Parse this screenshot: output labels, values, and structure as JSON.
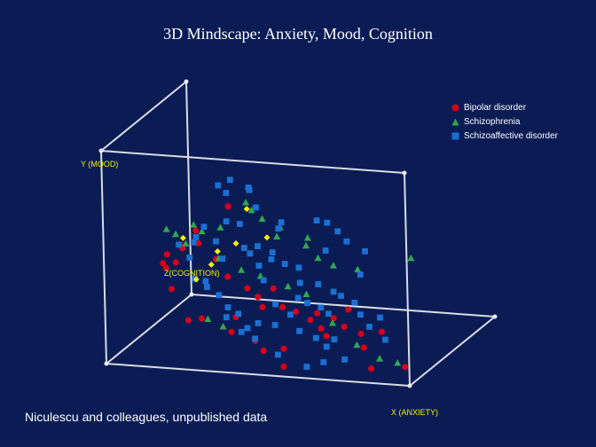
{
  "slide": {
    "title": "3D Mindscape: Anxiety, Mood, Cognition",
    "footnote": "Niculescu and colleagues, unpublished data"
  },
  "colors": {
    "background": "#0b1c55",
    "frame": "#d9dce4",
    "bipolar": "#d4001a",
    "schizophrenia": "#2fa84f",
    "schizoaffective": "#1a70d2",
    "highlight": "#f6f000"
  },
  "chart_data": {
    "type": "scatter",
    "projection": "3d",
    "title": "3D Mindscape: Anxiety, Mood, Cognition",
    "xlabel": "X (ANXIETY)",
    "ylabel": "Y (MOOD)",
    "zlabel": "Z(COGNITION)",
    "xlim": [
      0,
      1
    ],
    "ylim": [
      0,
      1
    ],
    "zlim": [
      0,
      1
    ],
    "grid": false,
    "legend": {
      "position": "top-right",
      "entries": [
        "Bipolar disorder",
        "Schizophrenia",
        "Schizoaffective disorder"
      ]
    },
    "series": [
      {
        "name": "Bipolar disorder",
        "marker": "circle",
        "points": [
          [
            0.04,
            0.3,
            0.54
          ],
          [
            0.05,
            0.28,
            0.54
          ],
          [
            0.06,
            0.35,
            0.52
          ],
          [
            0.1,
            0.39,
            0.54
          ],
          [
            0.1,
            0.33,
            0.48
          ],
          [
            0.14,
            0.42,
            0.42
          ],
          [
            0.21,
            0.47,
            0.36
          ],
          [
            0.25,
            0.38,
            0.42
          ],
          [
            0.31,
            0.33,
            0.34
          ],
          [
            0.38,
            0.29,
            0.32
          ],
          [
            0.42,
            0.26,
            0.3
          ],
          [
            0.46,
            0.29,
            0.34
          ],
          [
            0.44,
            0.22,
            0.28
          ],
          [
            0.5,
            0.22,
            0.3
          ],
          [
            0.55,
            0.21,
            0.28
          ],
          [
            0.6,
            0.18,
            0.27
          ],
          [
            0.62,
            0.21,
            0.28
          ],
          [
            0.64,
            0.15,
            0.25
          ],
          [
            0.68,
            0.2,
            0.26
          ],
          [
            0.66,
            0.12,
            0.24
          ],
          [
            0.72,
            0.17,
            0.24
          ],
          [
            0.78,
            0.15,
            0.22
          ],
          [
            0.74,
            0.26,
            0.22
          ],
          [
            0.8,
            0.1,
            0.18
          ],
          [
            0.3,
            0.64,
            0.4
          ],
          [
            0.22,
            0.55,
            0.3
          ],
          [
            0.17,
            0.31,
            0.18
          ],
          [
            0.24,
            0.19,
            0.12
          ],
          [
            0.29,
            0.21,
            0.1
          ],
          [
            0.39,
            0.16,
            0.09
          ],
          [
            0.47,
            0.13,
            0.08
          ],
          [
            0.5,
            0.09,
            0.07
          ],
          [
            0.57,
            0.11,
            0.06
          ],
          [
            0.86,
            0.05,
            0.05
          ],
          [
            0.98,
            0.08,
            0.02
          ],
          [
            0.58,
            0.04,
            0.02
          ],
          [
            0.86,
            0.18,
            0.18
          ],
          [
            0.38,
            0.2,
            0.18
          ]
        ]
      },
      {
        "name": "Schizophrenia",
        "marker": "triangle",
        "points": [
          [
            0.06,
            0.47,
            0.52
          ],
          [
            0.09,
            0.45,
            0.52
          ],
          [
            0.14,
            0.43,
            0.46
          ],
          [
            0.2,
            0.5,
            0.44
          ],
          [
            0.27,
            0.4,
            0.38
          ],
          [
            0.35,
            0.36,
            0.36
          ],
          [
            0.43,
            0.36,
            0.3
          ],
          [
            0.52,
            0.32,
            0.3
          ],
          [
            0.58,
            0.29,
            0.3
          ],
          [
            0.36,
            0.61,
            0.46
          ],
          [
            0.33,
            0.63,
            0.5
          ],
          [
            0.4,
            0.58,
            0.44
          ],
          [
            0.47,
            0.56,
            0.4
          ],
          [
            0.47,
            0.53,
            0.36
          ],
          [
            0.56,
            0.49,
            0.38
          ],
          [
            0.56,
            0.52,
            0.4
          ],
          [
            0.61,
            0.45,
            0.34
          ],
          [
            0.66,
            0.42,
            0.34
          ],
          [
            0.9,
            0.46,
            0.4
          ],
          [
            0.71,
            0.22,
            0.14
          ],
          [
            0.8,
            0.14,
            0.1
          ],
          [
            0.88,
            0.09,
            0.08
          ],
          [
            0.95,
            0.09,
            0.04
          ],
          [
            0.31,
            0.21,
            0.1
          ],
          [
            0.36,
            0.18,
            0.1
          ],
          [
            0.29,
            0.56,
            0.34
          ],
          [
            0.19,
            0.55,
            0.38
          ],
          [
            0.74,
            0.41,
            0.34
          ]
        ]
      },
      {
        "name": "Schizoaffective disorder",
        "marker": "square",
        "points": [
          [
            0.1,
            0.4,
            0.52
          ],
          [
            0.14,
            0.35,
            0.5
          ],
          [
            0.16,
            0.43,
            0.48
          ],
          [
            0.19,
            0.5,
            0.5
          ],
          [
            0.24,
            0.45,
            0.46
          ],
          [
            0.27,
            0.54,
            0.48
          ],
          [
            0.32,
            0.54,
            0.46
          ],
          [
            0.35,
            0.45,
            0.4
          ],
          [
            0.4,
            0.47,
            0.38
          ],
          [
            0.45,
            0.42,
            0.36
          ],
          [
            0.5,
            0.41,
            0.34
          ],
          [
            0.54,
            0.39,
            0.36
          ],
          [
            0.56,
            0.34,
            0.3
          ],
          [
            0.62,
            0.34,
            0.3
          ],
          [
            0.67,
            0.31,
            0.3
          ],
          [
            0.7,
            0.3,
            0.28
          ],
          [
            0.75,
            0.28,
            0.26
          ],
          [
            0.78,
            0.24,
            0.22
          ],
          [
            0.82,
            0.2,
            0.18
          ],
          [
            0.85,
            0.24,
            0.2
          ],
          [
            0.63,
            0.48,
            0.36
          ],
          [
            0.7,
            0.53,
            0.36
          ],
          [
            0.58,
            0.59,
            0.44
          ],
          [
            0.76,
            0.49,
            0.36
          ],
          [
            0.68,
            0.24,
            0.2
          ],
          [
            0.65,
            0.26,
            0.22
          ],
          [
            0.6,
            0.27,
            0.24
          ],
          [
            0.57,
            0.29,
            0.24
          ],
          [
            0.56,
            0.23,
            0.18
          ],
          [
            0.6,
            0.17,
            0.14
          ],
          [
            0.66,
            0.15,
            0.12
          ],
          [
            0.72,
            0.15,
            0.12
          ],
          [
            0.52,
            0.19,
            0.14
          ],
          [
            0.47,
            0.2,
            0.12
          ],
          [
            0.44,
            0.18,
            0.1
          ],
          [
            0.4,
            0.23,
            0.14
          ],
          [
            0.36,
            0.25,
            0.16
          ],
          [
            0.32,
            0.29,
            0.2
          ],
          [
            0.27,
            0.31,
            0.24
          ],
          [
            0.22,
            0.33,
            0.28
          ],
          [
            0.36,
            0.71,
            0.44
          ],
          [
            0.34,
            0.7,
            0.5
          ],
          [
            0.28,
            0.73,
            0.5
          ],
          [
            0.24,
            0.7,
            0.5
          ],
          [
            0.26,
            0.66,
            0.52
          ],
          [
            0.38,
            0.63,
            0.44
          ],
          [
            0.47,
            0.56,
            0.38
          ],
          [
            0.48,
            0.59,
            0.38
          ],
          [
            0.62,
            0.59,
            0.42
          ],
          [
            0.66,
            0.56,
            0.4
          ],
          [
            0.9,
            0.18,
            0.08
          ],
          [
            0.77,
            0.08,
            0.06
          ],
          [
            0.7,
            0.06,
            0.06
          ],
          [
            0.65,
            0.04,
            0.04
          ],
          [
            0.55,
            0.08,
            0.06
          ],
          [
            0.47,
            0.14,
            0.08
          ],
          [
            0.42,
            0.16,
            0.1
          ],
          [
            0.36,
            0.21,
            0.14
          ],
          [
            0.18,
            0.47,
            0.44
          ],
          [
            0.44,
            0.34,
            0.3
          ],
          [
            0.5,
            0.26,
            0.22
          ],
          [
            0.3,
            0.42,
            0.32
          ],
          [
            0.7,
            0.12,
            0.1
          ],
          [
            0.42,
            0.4,
            0.32
          ],
          [
            0.38,
            0.44,
            0.36
          ],
          [
            0.26,
            0.33,
            0.26
          ],
          [
            0.76,
            0.4,
            0.3
          ],
          [
            0.46,
            0.46,
            0.34
          ]
        ]
      },
      {
        "name": "",
        "marker": "diamond",
        "points": [
          [
            0.12,
            0.44,
            0.5
          ],
          [
            0.25,
            0.41,
            0.44
          ],
          [
            0.3,
            0.44,
            0.48
          ],
          [
            0.24,
            0.36,
            0.4
          ],
          [
            0.16,
            0.25,
            0.5
          ],
          [
            0.35,
            0.62,
            0.44
          ],
          [
            0.42,
            0.5,
            0.42
          ]
        ]
      }
    ]
  }
}
